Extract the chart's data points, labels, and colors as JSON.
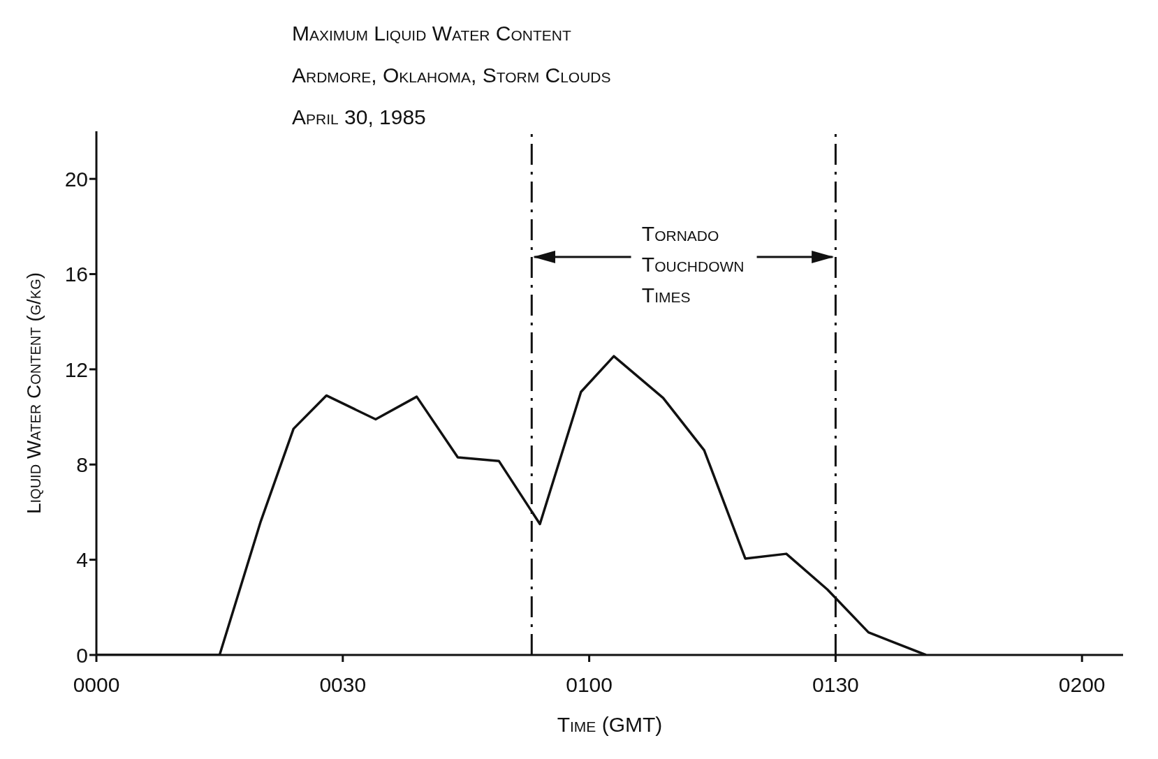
{
  "chart_data": {
    "type": "line",
    "title": "Maximum Liquid Water Content",
    "subtitle": "Ardmore, Oklahoma, Storm Clouds\nApril 30, 1985",
    "xlabel": "Time (GMT)",
    "ylabel": "Liquid Water Content (g/kg)",
    "x": [
      "1985-04-30T00:00",
      "1985-04-30T00:15",
      "1985-04-30T00:20",
      "1985-04-30T00:24",
      "1985-04-30T00:28",
      "1985-04-30T00:34",
      "1985-04-30T00:39",
      "1985-04-30T00:44",
      "1985-04-30T00:49",
      "1985-04-30T00:54",
      "1985-04-30T00:59",
      "1985-04-30T01:03",
      "1985-04-30T01:09",
      "1985-04-30T01:14",
      "1985-04-30T01:19",
      "1985-04-30T01:24",
      "1985-04-30T01:29",
      "1985-04-30T01:34",
      "1985-04-30T01:41"
    ],
    "series": [
      {
        "color": "#111111",
        "values": [
          0,
          0,
          5.6,
          9.5,
          10.9,
          9.9,
          10.85,
          8.3,
          8.15,
          5.5,
          11.05,
          12.55,
          10.8,
          8.6,
          4.05,
          4.25,
          2.75,
          0.95,
          0
        ]
      }
    ],
    "xlim": [
      "1985-04-30T00:00",
      "1985-04-30T02:05"
    ],
    "xticks": [
      {
        "value": "1985-04-30T00:00",
        "label": "0000"
      },
      {
        "value": "1985-04-30T00:30",
        "label": "0030"
      },
      {
        "value": "1985-04-30T01:00",
        "label": "0100"
      },
      {
        "value": "1985-04-30T01:30",
        "label": "0130"
      },
      {
        "value": "1985-04-30T02:00",
        "label": "0200"
      }
    ],
    "ylim": [
      0,
      22
    ],
    "yticks": [
      0,
      4,
      8,
      12,
      16,
      20
    ],
    "ref_lines": [
      {
        "axis": "x",
        "value": "1985-04-30T00:53",
        "line_style": "dashed",
        "color": "#111111"
      },
      {
        "axis": "x",
        "value": "1985-04-30T01:30",
        "line_style": "dashed",
        "color": "#111111"
      }
    ],
    "annotations": [
      "Tornado Touchdown Times"
    ],
    "grid": false,
    "legend": false,
    "marker": "none",
    "line_style": "solid"
  }
}
